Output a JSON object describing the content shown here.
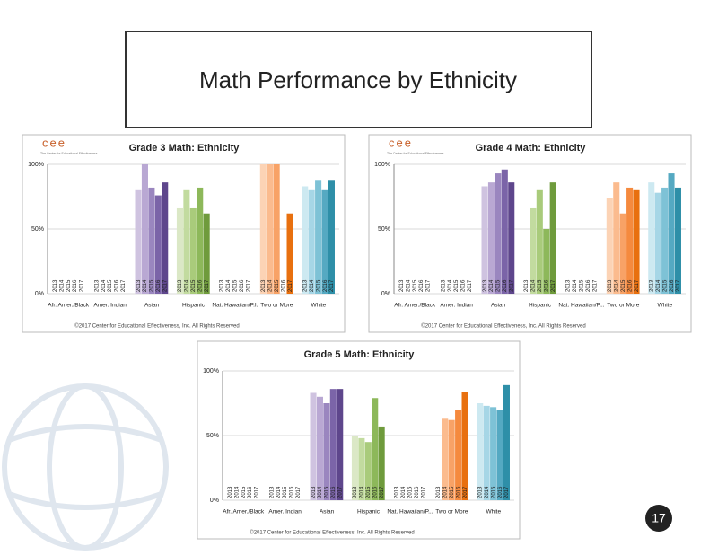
{
  "title": "Math Performance by Ethnicity",
  "page_number": "17",
  "chart_data": [
    {
      "type": "bar",
      "title": "Grade 3 Math: Ethnicity",
      "logo": "cee",
      "logo_tagline": "The Center for Educational Effectiveness",
      "footer": "©2017 Center for Educational Effectiveness, Inc. All Rights Reserved",
      "categories": [
        "Afr. Amer./Black",
        "Amer. Indian",
        "Asian",
        "Hispanic",
        "Nat. Hawaiian/P.I.",
        "Two or More",
        "White"
      ],
      "series": [
        {
          "name": "2013",
          "values": [
            null,
            null,
            80,
            66,
            null,
            100,
            83
          ]
        },
        {
          "name": "2014",
          "values": [
            null,
            null,
            100,
            80,
            null,
            100,
            80
          ]
        },
        {
          "name": "2015",
          "values": [
            null,
            null,
            82,
            66,
            null,
            100,
            88
          ]
        },
        {
          "name": "2016",
          "values": [
            null,
            null,
            76,
            82,
            null,
            null,
            80
          ]
        },
        {
          "name": "2017",
          "values": [
            null,
            null,
            86,
            62,
            null,
            62,
            88
          ]
        }
      ],
      "colors": [
        null,
        null,
        [
          "#cfc3e0",
          "#b9a8d3",
          "#9a86bf",
          "#7b64a8",
          "#5e468c"
        ],
        [
          "#dbe8c6",
          "#c2db9f",
          "#a9cb7b",
          "#8db85a",
          "#6f9b3c"
        ],
        null,
        [
          "#fcd3b5",
          "#fbbb8e",
          "#f8a266",
          "#f58a3e",
          "#e8700f"
        ],
        [
          "#cde9f1",
          "#a6d6e6",
          "#7ec2d6",
          "#55a9c2",
          "#2e8fa8"
        ]
      ],
      "ylim": [
        0,
        100
      ],
      "yticks": [
        {
          "value": 0,
          "label": "0%"
        },
        {
          "value": 50,
          "label": "50%"
        },
        {
          "value": 100,
          "label": "100%"
        }
      ],
      "grid": true
    },
    {
      "type": "bar",
      "title": "Grade 4 Math: Ethnicity",
      "logo": "cee",
      "logo_tagline": "The Center for Educational Effectiveness",
      "footer": "©2017 Center for Educational Effectiveness, Inc. All Rights Reserved",
      "categories": [
        "Afr. Amer./Black",
        "Amer. Indian",
        "Asian",
        "Hispanic",
        "Nat. Hawaiian/P...",
        "Two or More",
        "White"
      ],
      "series": [
        {
          "name": "2013",
          "values": [
            null,
            null,
            83,
            null,
            null,
            74,
            86
          ]
        },
        {
          "name": "2014",
          "values": [
            null,
            null,
            86,
            66,
            null,
            86,
            78
          ]
        },
        {
          "name": "2015",
          "values": [
            null,
            null,
            93,
            80,
            null,
            62,
            82
          ]
        },
        {
          "name": "2016",
          "values": [
            null,
            null,
            96,
            50,
            null,
            82,
            93
          ]
        },
        {
          "name": "2017",
          "values": [
            null,
            null,
            86,
            86,
            null,
            80,
            82
          ]
        }
      ],
      "colors": [
        null,
        null,
        [
          "#cfc3e0",
          "#b9a8d3",
          "#9a86bf",
          "#7b64a8",
          "#5e468c"
        ],
        [
          "#dbe8c6",
          "#c2db9f",
          "#a9cb7b",
          "#8db85a",
          "#6f9b3c"
        ],
        null,
        [
          "#fcd3b5",
          "#fbbb8e",
          "#f8a266",
          "#f58a3e",
          "#e8700f"
        ],
        [
          "#cde9f1",
          "#a6d6e6",
          "#7ec2d6",
          "#55a9c2",
          "#2e8fa8"
        ]
      ],
      "ylim": [
        0,
        100
      ],
      "yticks": [
        {
          "value": 0,
          "label": "0%"
        },
        {
          "value": 50,
          "label": "50%"
        },
        {
          "value": 100,
          "label": "100%"
        }
      ],
      "grid": true
    },
    {
      "type": "bar",
      "title": "Grade 5 Math: Ethnicity",
      "footer": "©2017 Center for Educational Effectiveness, Inc. All Rights Reserved",
      "categories": [
        "Afr. Amer./Black",
        "Amer. Indian",
        "Asian",
        "Hispanic",
        "Nat. Hawaiian/P...",
        "Two or More",
        "White"
      ],
      "series": [
        {
          "name": "2013",
          "values": [
            null,
            null,
            83,
            50,
            null,
            null,
            75
          ]
        },
        {
          "name": "2014",
          "values": [
            null,
            null,
            80,
            48,
            null,
            63,
            73
          ]
        },
        {
          "name": "2015",
          "values": [
            null,
            null,
            75,
            45,
            null,
            62,
            72
          ]
        },
        {
          "name": "2016",
          "values": [
            null,
            null,
            86,
            79,
            null,
            70,
            70
          ]
        },
        {
          "name": "2017",
          "values": [
            null,
            null,
            86,
            57,
            null,
            84,
            89
          ]
        }
      ],
      "colors": [
        null,
        null,
        [
          "#cfc3e0",
          "#b9a8d3",
          "#9a86bf",
          "#7b64a8",
          "#5e468c"
        ],
        [
          "#dbe8c6",
          "#c2db9f",
          "#a9cb7b",
          "#8db85a",
          "#6f9b3c"
        ],
        null,
        [
          "#fcd3b5",
          "#fbbb8e",
          "#f8a266",
          "#f58a3e",
          "#e8700f"
        ],
        [
          "#cde9f1",
          "#a6d6e6",
          "#7ec2d6",
          "#55a9c2",
          "#2e8fa8"
        ]
      ],
      "ylim": [
        0,
        100
      ],
      "yticks": [
        {
          "value": 0,
          "label": "0%"
        },
        {
          "value": 50,
          "label": "50%"
        },
        {
          "value": 100,
          "label": "100%"
        }
      ],
      "grid": true
    }
  ]
}
